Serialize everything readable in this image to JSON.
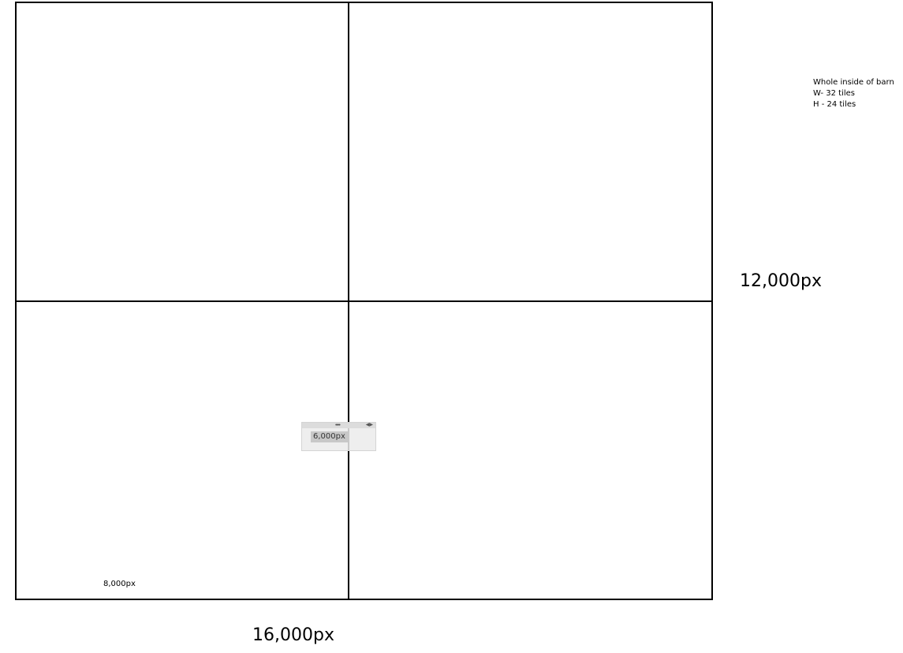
{
  "labels": {
    "quarter_width": "8,000px",
    "total_height": "12,000px",
    "total_width": "16,000px"
  },
  "notes": {
    "line1": "Whole inside of barn",
    "line2": "W- 32 tiles",
    "line3": "H - 24 tiles"
  },
  "widget": {
    "value": "6,000px",
    "grip_icon": "grip-dots-icon",
    "arrows_icon": "collapse-arrows-icon"
  },
  "colors": {
    "lines": "#000000",
    "background": "#ffffff",
    "widget_bg": "#ebebeb"
  }
}
